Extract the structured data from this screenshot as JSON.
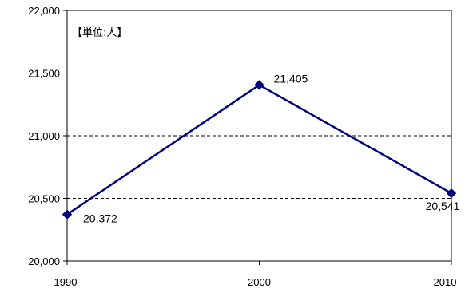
{
  "chart_data": {
    "type": "line",
    "categories": [
      "1990",
      "2000",
      "2010"
    ],
    "values": [
      20372,
      21405,
      20541
    ],
    "data_labels": [
      "20,372",
      "21,405",
      "20,541"
    ],
    "unit_note": "【単位:人】",
    "ylim": [
      20000,
      22000
    ],
    "y_ticks": [
      20000,
      20500,
      21000,
      21500,
      22000
    ],
    "y_tick_labels": [
      "20,000",
      "20,500",
      "21,000",
      "21,500",
      "22,000"
    ],
    "grid": "dashed horizontal",
    "line_color": "#00007f",
    "marker": "diamond",
    "legend": "none"
  }
}
